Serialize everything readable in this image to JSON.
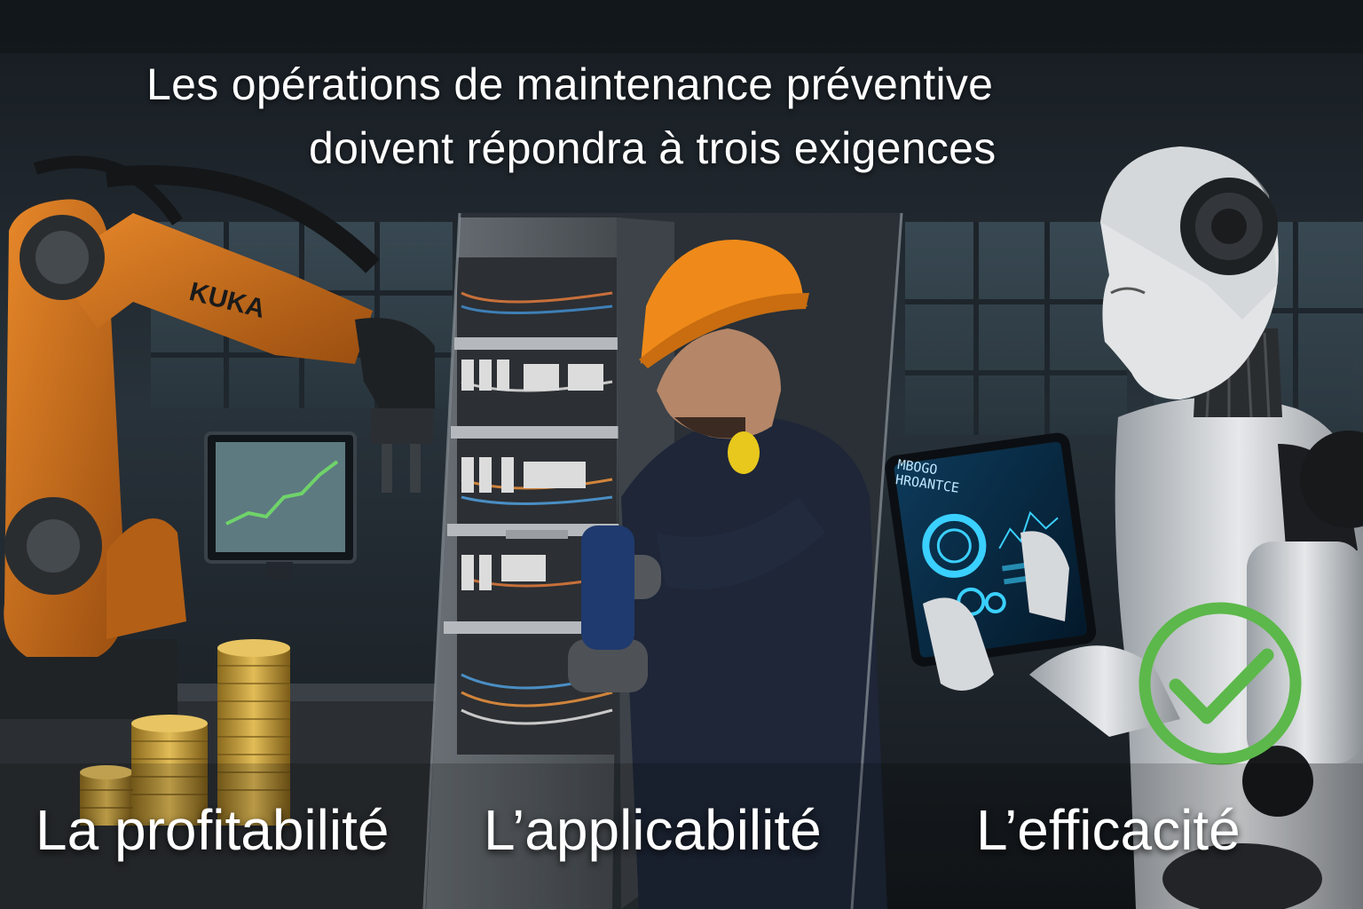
{
  "title": {
    "line1": "Les opérations de maintenance préventive",
    "line2": "doivent répondra à trois exigences"
  },
  "panels": [
    {
      "caption": "La profitabilité"
    },
    {
      "caption": "L’applicabilité"
    },
    {
      "caption": "L’efficacité"
    }
  ],
  "robot_arm_logo": "KUKA",
  "tablet_screen": {
    "line1": "MBOGO",
    "line2": "HROANTCE"
  },
  "icons": {
    "check": "check-circle-icon",
    "coins": "coin-stack-icon",
    "trend": "trend-chart-icon"
  },
  "colors": {
    "accent_orange": "#d4761e",
    "helmet_orange": "#ef8a1a",
    "check_green": "#5cb84a",
    "coin_gold": "#c9a03a",
    "tablet_cyan": "#3ad0ff"
  }
}
